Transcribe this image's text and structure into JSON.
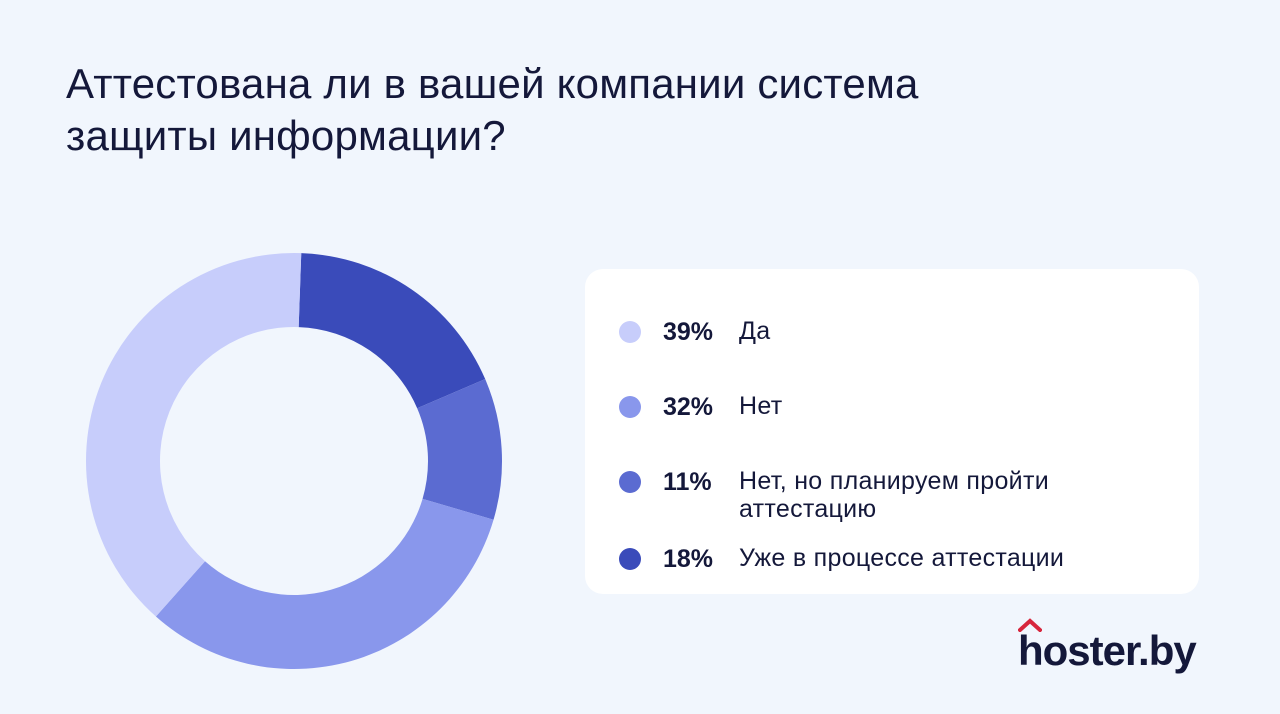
{
  "title": "Аттестована ли в вашей компании система защиты информации?",
  "chart_data": {
    "type": "pie",
    "title": "Аттестована ли в вашей компании система защиты информации?",
    "categories": [
      "Да",
      "Нет",
      "Нет, но планируем пройти аттестацию",
      "Уже в процессе аттестации"
    ],
    "values": [
      39,
      32,
      11,
      18
    ],
    "value_labels": [
      "39%",
      "32%",
      "11%",
      "18%"
    ],
    "colors": [
      "#c7cdfb",
      "#8997ec",
      "#5b6bd1",
      "#3a4bba"
    ],
    "style": "donut",
    "legend_placement": "right"
  },
  "logo": {
    "text": "hoster.by",
    "accent_color": "#d7263d"
  }
}
